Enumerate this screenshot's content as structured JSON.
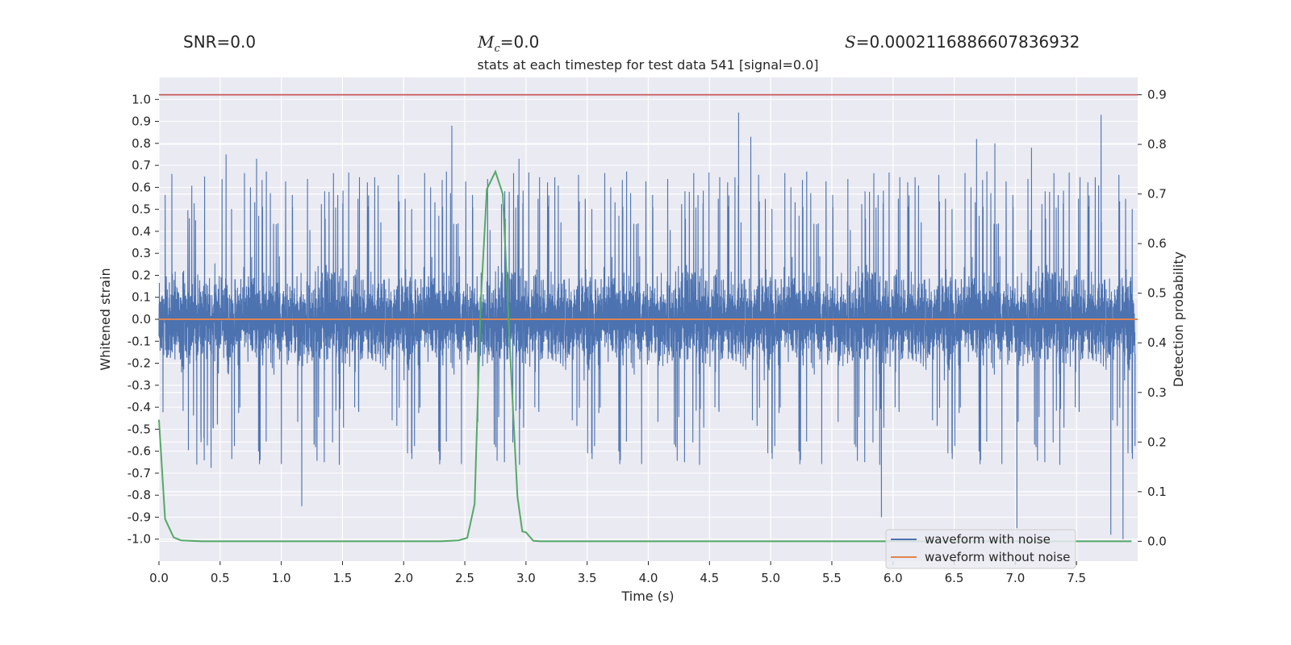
{
  "chart_data": {
    "type": "line",
    "title": "stats at each timestep for test data 541 [signal=0.0]",
    "annotations": {
      "snr": "SNR=0.0",
      "mc_symbol": "M",
      "mc_sub": "c",
      "mc_value": "=0.0",
      "s_symbol": "S",
      "s_value": "=0.0002116886607836932"
    },
    "xlabel": "Time (s)",
    "ylabel_left": "Whitened strain",
    "ylabel_right": "Detection probability",
    "xlim": [
      0.0,
      8.0
    ],
    "ylim_left": [
      -1.1,
      1.1
    ],
    "ylim_right": [
      -0.04,
      0.935
    ],
    "x_ticks": [
      "0.0",
      "0.5",
      "1.0",
      "1.5",
      "2.0",
      "2.5",
      "3.0",
      "3.5",
      "4.0",
      "4.5",
      "5.0",
      "5.5",
      "6.0",
      "6.5",
      "7.0",
      "7.5"
    ],
    "y_ticks_left": [
      "1.0",
      "0.9",
      "0.8",
      "0.7",
      "0.6",
      "0.5",
      "0.4",
      "0.3",
      "0.2",
      "0.1",
      "0.0",
      "-0.1",
      "-0.2",
      "-0.3",
      "-0.4",
      "-0.5",
      "-0.6",
      "-0.7",
      "-0.8",
      "-0.9",
      "-1.0"
    ],
    "y_ticks_right": [
      "0.9",
      "0.8",
      "0.7",
      "0.6",
      "0.5",
      "0.4",
      "0.3",
      "0.2",
      "0.1",
      "0.0"
    ],
    "threshold": 0.9,
    "legend": {
      "placement": "lower-right",
      "entries": [
        "waveform with noise",
        "waveform without noise"
      ]
    },
    "colors": {
      "noise": "#4c72b0",
      "clean": "#dd8452",
      "prob": "#55a868",
      "threshold": "#c44e52",
      "plot_bg": "#eaeaf2",
      "grid": "#ffffff"
    },
    "series": [
      {
        "name": "waveform with noise",
        "axis": "left",
        "style": "dense-noise",
        "envelope_typical": [
          -0.42,
          0.42
        ],
        "peaks_x": [
          0.55,
          0.8,
          1.17,
          2.4,
          2.95,
          4.75,
          4.85,
          5.92,
          6.7,
          6.85,
          7.03,
          7.15,
          7.72,
          7.8,
          7.9
        ],
        "peaks_y": [
          0.75,
          0.73,
          -0.85,
          0.88,
          0.73,
          0.94,
          0.83,
          -0.9,
          0.82,
          0.8,
          -0.95,
          0.78,
          0.93,
          -0.98,
          -1.0
        ]
      },
      {
        "name": "waveform without noise",
        "axis": "left",
        "x": [
          0.0,
          8.0
        ],
        "y": [
          0.0,
          0.0
        ]
      },
      {
        "name": "detection probability",
        "axis": "right",
        "x": [
          0.0,
          0.05,
          0.12,
          0.18,
          0.25,
          0.35,
          0.5,
          1.0,
          1.5,
          2.0,
          2.3,
          2.45,
          2.52,
          2.58,
          2.63,
          2.68,
          2.75,
          2.81,
          2.87,
          2.93,
          2.97,
          3.0,
          3.06,
          3.12,
          3.5,
          4.0,
          5.0,
          6.0,
          7.0,
          7.95
        ],
        "y": [
          0.245,
          0.045,
          0.008,
          0.002,
          0.001,
          0.0,
          0.0,
          0.0,
          0.0,
          0.0,
          0.0,
          0.002,
          0.007,
          0.075,
          0.48,
          0.71,
          0.745,
          0.7,
          0.38,
          0.09,
          0.02,
          0.018,
          0.001,
          0.0,
          0.0,
          0.0,
          0.0,
          0.0,
          0.0,
          0.0
        ]
      }
    ]
  }
}
